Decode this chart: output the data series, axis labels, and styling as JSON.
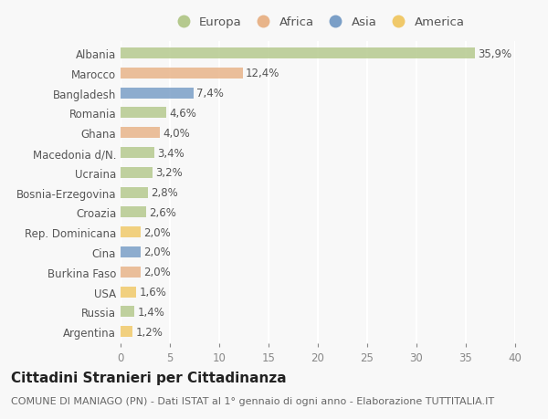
{
  "countries": [
    "Albania",
    "Marocco",
    "Bangladesh",
    "Romania",
    "Ghana",
    "Macedonia d/N.",
    "Ucraina",
    "Bosnia-Erzegovina",
    "Croazia",
    "Rep. Dominicana",
    "Cina",
    "Burkina Faso",
    "USA",
    "Russia",
    "Argentina"
  ],
  "values": [
    35.9,
    12.4,
    7.4,
    4.6,
    4.0,
    3.4,
    3.2,
    2.8,
    2.6,
    2.0,
    2.0,
    2.0,
    1.6,
    1.4,
    1.2
  ],
  "labels": [
    "35,9%",
    "12,4%",
    "7,4%",
    "4,6%",
    "4,0%",
    "3,4%",
    "3,2%",
    "2,8%",
    "2,6%",
    "2,0%",
    "2,0%",
    "2,0%",
    "1,6%",
    "1,4%",
    "1,2%"
  ],
  "continents": [
    "Europa",
    "Africa",
    "Asia",
    "Europa",
    "Africa",
    "Europa",
    "Europa",
    "Europa",
    "Europa",
    "America",
    "Asia",
    "Africa",
    "America",
    "Europa",
    "America"
  ],
  "continent_colors": {
    "Europa": "#b5c98e",
    "Africa": "#e8b48a",
    "Asia": "#7b9fc7",
    "America": "#f0c96a"
  },
  "legend_order": [
    "Europa",
    "Africa",
    "Asia",
    "America"
  ],
  "xlim": [
    0,
    40
  ],
  "xticks": [
    0,
    5,
    10,
    15,
    20,
    25,
    30,
    35,
    40
  ],
  "title": "Cittadini Stranieri per Cittadinanza",
  "subtitle": "COMUNE DI MANIAGO (PN) - Dati ISTAT al 1° gennaio di ogni anno - Elaborazione TUTTITALIA.IT",
  "bg_color": "#f8f8f8",
  "grid_color": "#ffffff",
  "bar_height": 0.55,
  "title_fontsize": 11,
  "subtitle_fontsize": 8,
  "label_fontsize": 8.5,
  "tick_fontsize": 8.5,
  "legend_fontsize": 9.5
}
